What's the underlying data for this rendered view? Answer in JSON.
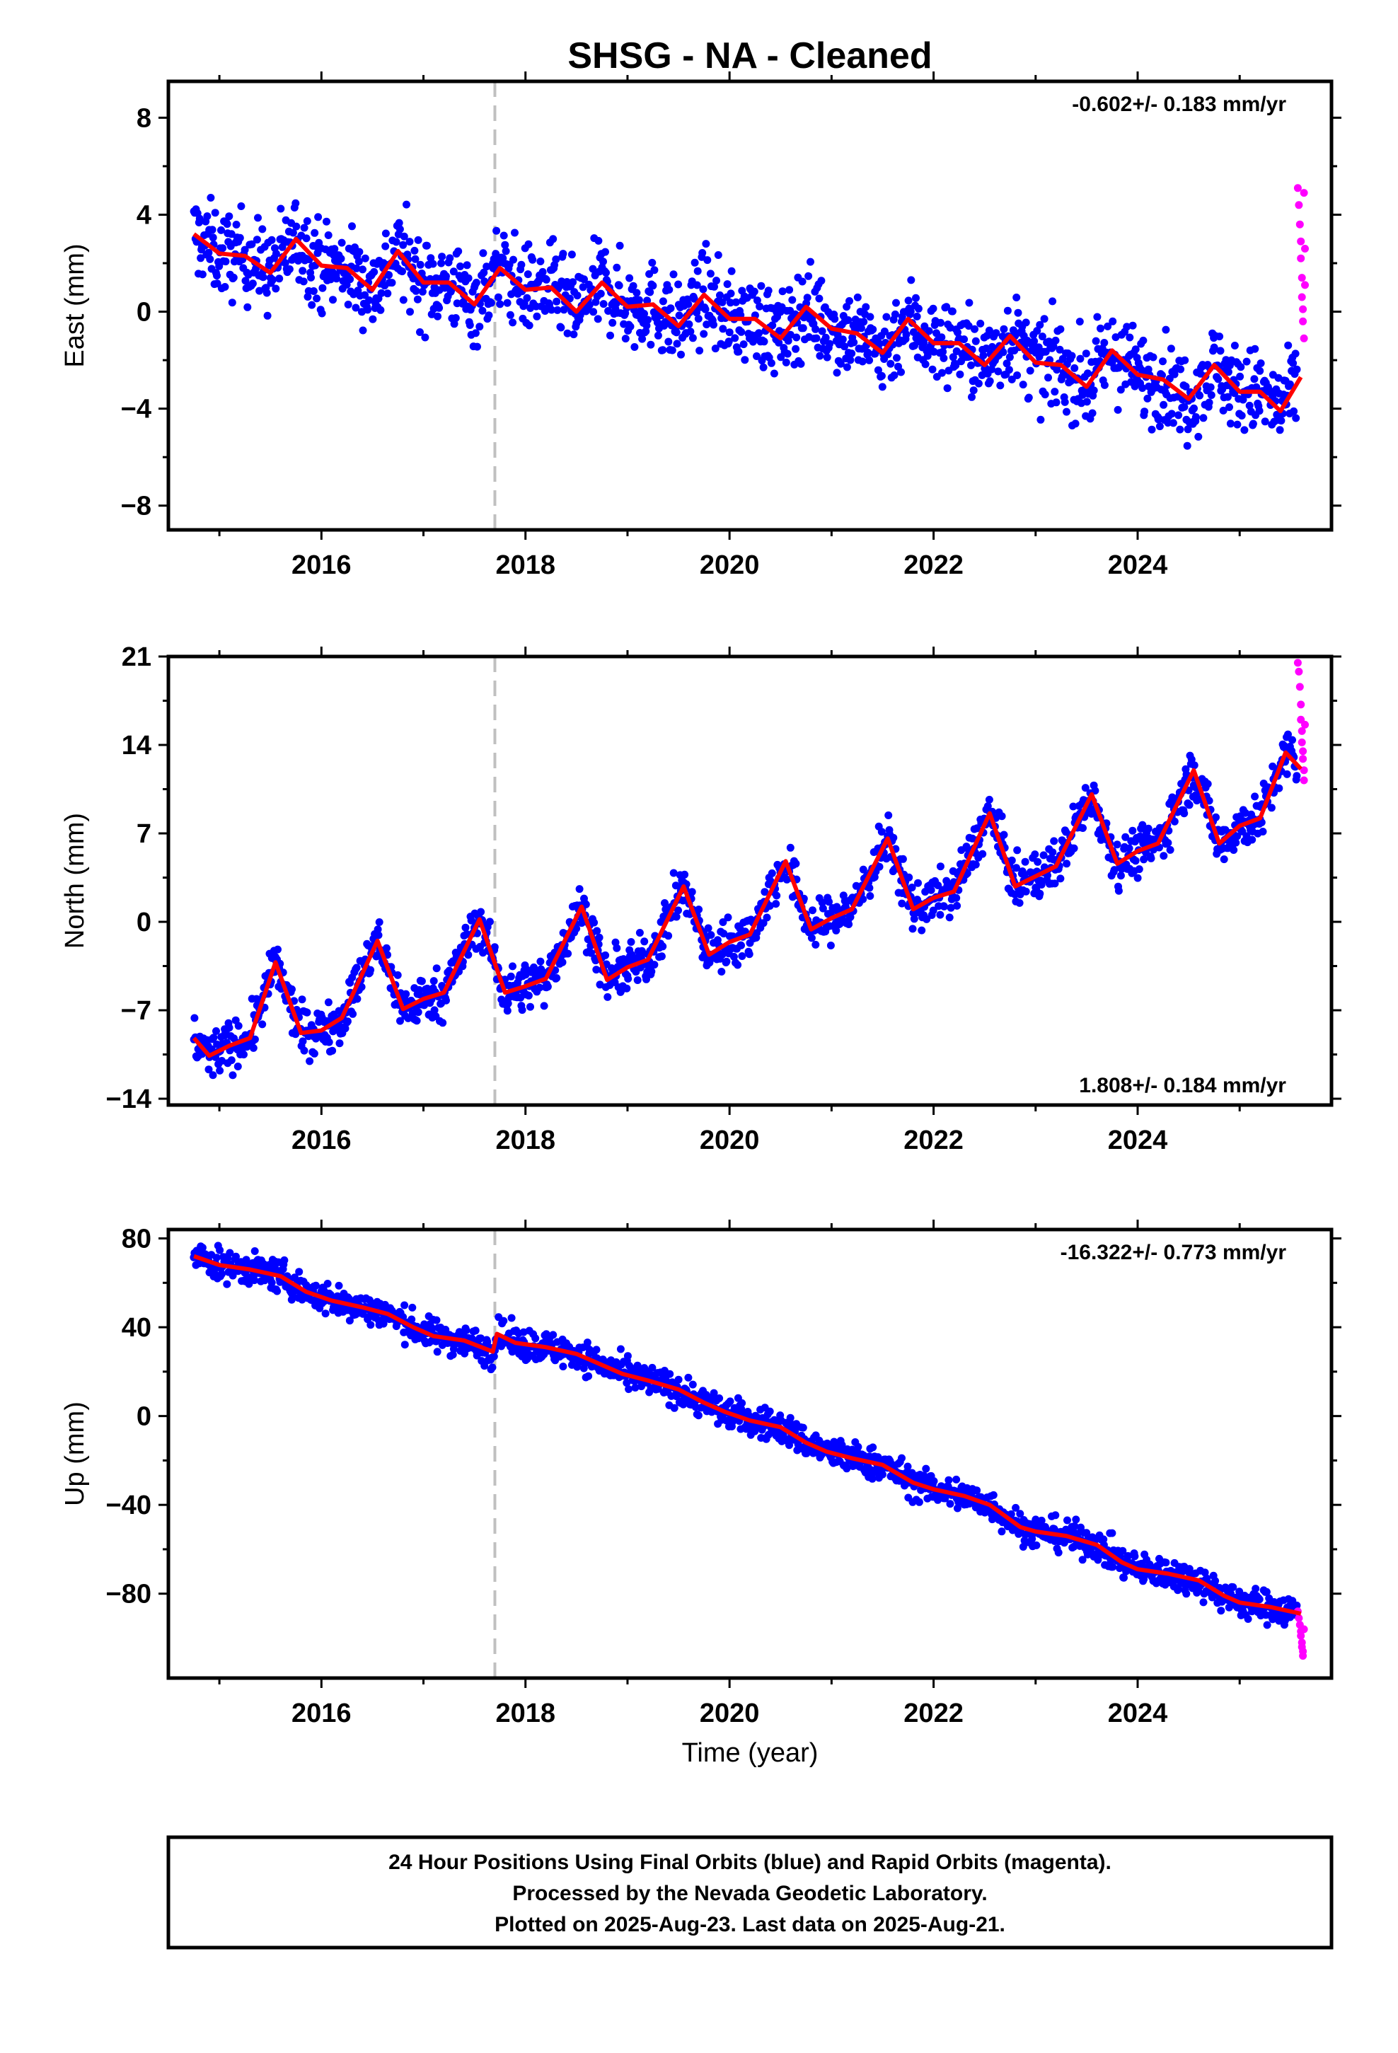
{
  "title": "SHSG  - NA - Cleaned",
  "colors": {
    "final": "#0000ff",
    "rapid": "#ff00ff",
    "model": "#ff0000",
    "event_line": "#c0c0c0"
  },
  "chart_data": [
    {
      "type": "scatter",
      "component": "east",
      "ylabel": "East (mm)",
      "rate_text": "-0.602+/- 0.183 mm/yr",
      "rate_placement": "top-right",
      "xlim": [
        2014.5,
        2025.9
      ],
      "ylim": [
        -9,
        9.5
      ],
      "yticks": [
        -8,
        -4,
        0,
        4,
        8
      ],
      "ytick_labels": [
        "−8",
        "−4",
        "0",
        "4",
        "8"
      ],
      "xticks": [
        2016,
        2018,
        2020,
        2022,
        2024
      ],
      "xtick_labels": [
        "2016",
        "2018",
        "2020",
        "2022",
        "2024"
      ],
      "event_line_x": 2017.7,
      "series": [
        {
          "points": [
            [
              2014.75,
              3.2
            ],
            [
              2015.0,
              2.4
            ],
            [
              2015.25,
              2.3
            ],
            [
              2015.5,
              1.6
            ],
            [
              2015.75,
              3.0
            ],
            [
              2016.0,
              1.9
            ],
            [
              2016.25,
              1.8
            ],
            [
              2016.5,
              0.9
            ],
            [
              2016.75,
              2.5
            ],
            [
              2017.0,
              1.2
            ],
            [
              2017.25,
              1.2
            ],
            [
              2017.5,
              0.3
            ],
            [
              2017.75,
              1.8
            ],
            [
              2018.0,
              0.9
            ],
            [
              2018.25,
              1.0
            ],
            [
              2018.5,
              0.0
            ],
            [
              2018.75,
              1.2
            ],
            [
              2019.0,
              0.2
            ],
            [
              2019.25,
              0.3
            ],
            [
              2019.5,
              -0.6
            ],
            [
              2019.75,
              0.7
            ],
            [
              2020.0,
              -0.3
            ],
            [
              2020.25,
              -0.3
            ],
            [
              2020.5,
              -1.1
            ],
            [
              2020.75,
              0.2
            ],
            [
              2021.0,
              -0.7
            ],
            [
              2021.25,
              -0.9
            ],
            [
              2021.5,
              -1.7
            ],
            [
              2021.75,
              -0.3
            ],
            [
              2022.0,
              -1.3
            ],
            [
              2022.25,
              -1.3
            ],
            [
              2022.5,
              -2.2
            ],
            [
              2022.75,
              -1.0
            ],
            [
              2023.0,
              -2.1
            ],
            [
              2023.25,
              -2.2
            ],
            [
              2023.5,
              -3.1
            ],
            [
              2023.75,
              -1.6
            ],
            [
              2024.0,
              -2.6
            ],
            [
              2024.25,
              -2.8
            ],
            [
              2024.5,
              -3.6
            ],
            [
              2024.75,
              -2.2
            ],
            [
              2025.0,
              -3.3
            ],
            [
              2025.2,
              -3.3
            ],
            [
              2025.4,
              -4.1
            ],
            [
              2025.6,
              -2.7
            ]
          ]
        }
      ],
      "rapid_points": [
        [
          2025.57,
          5.1
        ],
        [
          2025.58,
          4.4
        ],
        [
          2025.59,
          3.6
        ],
        [
          2025.6,
          2.9
        ],
        [
          2025.6,
          2.2
        ],
        [
          2025.61,
          1.4
        ],
        [
          2025.61,
          0.6
        ],
        [
          2025.62,
          0.1
        ],
        [
          2025.62,
          -0.4
        ],
        [
          2025.63,
          -1.1
        ],
        [
          2025.63,
          4.9
        ],
        [
          2025.64,
          2.6
        ],
        [
          2025.64,
          1.1
        ]
      ]
    },
    {
      "type": "scatter",
      "component": "north",
      "ylabel": "North (mm)",
      "rate_text": "1.808+/- 0.184 mm/yr",
      "rate_placement": "bottom-right",
      "xlim": [
        2014.5,
        2025.9
      ],
      "ylim": [
        -14.5,
        21
      ],
      "yticks": [
        -14,
        -7,
        0,
        7,
        14,
        21
      ],
      "ytick_labels": [
        "−14",
        "−7",
        "0",
        "7",
        "14",
        "21"
      ],
      "xticks": [
        2016,
        2018,
        2020,
        2022,
        2024
      ],
      "xtick_labels": [
        "2016",
        "2018",
        "2020",
        "2022",
        "2024"
      ],
      "event_line_x": 2017.7,
      "series": [
        {
          "points": [
            [
              2014.75,
              -9.2
            ],
            [
              2014.9,
              -10.6
            ],
            [
              2015.1,
              -9.8
            ],
            [
              2015.3,
              -9.2
            ],
            [
              2015.55,
              -3.2
            ],
            [
              2015.8,
              -8.8
            ],
            [
              2016.0,
              -8.6
            ],
            [
              2016.2,
              -7.6
            ],
            [
              2016.55,
              -1.5
            ],
            [
              2016.8,
              -6.9
            ],
            [
              2017.0,
              -6.1
            ],
            [
              2017.2,
              -5.6
            ],
            [
              2017.55,
              0.2
            ],
            [
              2017.8,
              -5.6
            ],
            [
              2018.0,
              -5.1
            ],
            [
              2018.2,
              -4.5
            ],
            [
              2018.55,
              1.2
            ],
            [
              2018.8,
              -4.6
            ],
            [
              2019.0,
              -3.6
            ],
            [
              2019.2,
              -3.0
            ],
            [
              2019.55,
              2.8
            ],
            [
              2019.8,
              -2.6
            ],
            [
              2020.0,
              -1.6
            ],
            [
              2020.2,
              -1.0
            ],
            [
              2020.55,
              4.8
            ],
            [
              2020.8,
              -0.6
            ],
            [
              2021.0,
              0.3
            ],
            [
              2021.2,
              1.0
            ],
            [
              2021.55,
              6.6
            ],
            [
              2021.8,
              1.0
            ],
            [
              2022.0,
              1.9
            ],
            [
              2022.2,
              2.4
            ],
            [
              2022.55,
              8.6
            ],
            [
              2022.8,
              2.8
            ],
            [
              2023.0,
              3.6
            ],
            [
              2023.2,
              4.4
            ],
            [
              2023.55,
              10.1
            ],
            [
              2023.8,
              4.6
            ],
            [
              2024.0,
              5.6
            ],
            [
              2024.2,
              6.2
            ],
            [
              2024.55,
              12.0
            ],
            [
              2024.8,
              6.2
            ],
            [
              2025.0,
              7.6
            ],
            [
              2025.2,
              8.2
            ],
            [
              2025.45,
              13.4
            ],
            [
              2025.6,
              12.1
            ]
          ]
        }
      ],
      "rapid_points": [
        [
          2025.57,
          20.5
        ],
        [
          2025.58,
          19.8
        ],
        [
          2025.59,
          18.6
        ],
        [
          2025.6,
          17.2
        ],
        [
          2025.6,
          16.0
        ],
        [
          2025.61,
          15.1
        ],
        [
          2025.61,
          14.2
        ],
        [
          2025.62,
          13.5
        ],
        [
          2025.62,
          12.9
        ],
        [
          2025.63,
          12.0
        ],
        [
          2025.63,
          11.2
        ],
        [
          2025.64,
          15.6
        ]
      ]
    },
    {
      "type": "scatter",
      "component": "up",
      "ylabel": "Up (mm)",
      "rate_text": "-16.322+/- 0.773 mm/yr",
      "rate_placement": "top-right",
      "xlim": [
        2014.5,
        2025.9
      ],
      "ylim": [
        -118,
        84
      ],
      "yticks": [
        -80,
        -40,
        0,
        40,
        80
      ],
      "ytick_labels": [
        "−80",
        "−40",
        "0",
        "40",
        "80"
      ],
      "xticks": [
        2016,
        2018,
        2020,
        2022,
        2024
      ],
      "xtick_labels": [
        "2016",
        "2018",
        "2020",
        "2022",
        "2024"
      ],
      "xlabel": "Time (year)",
      "event_line_x": 2017.7,
      "series": [
        {
          "points": [
            [
              2014.75,
              72
            ],
            [
              2015.0,
              68
            ],
            [
              2015.3,
              66
            ],
            [
              2015.6,
              63
            ],
            [
              2015.85,
              56
            ],
            [
              2016.1,
              52
            ],
            [
              2016.4,
              49
            ],
            [
              2016.65,
              46
            ],
            [
              2016.9,
              40
            ],
            [
              2017.1,
              36
            ],
            [
              2017.4,
              34
            ],
            [
              2017.68,
              29
            ],
            [
              2017.72,
              37
            ],
            [
              2017.9,
              33
            ],
            [
              2018.2,
              31
            ],
            [
              2018.5,
              28
            ],
            [
              2018.75,
              23
            ],
            [
              2018.95,
              19
            ],
            [
              2019.2,
              16
            ],
            [
              2019.5,
              12
            ],
            [
              2019.75,
              6
            ],
            [
              2019.95,
              2
            ],
            [
              2020.2,
              -2
            ],
            [
              2020.5,
              -5
            ],
            [
              2020.75,
              -12
            ],
            [
              2020.95,
              -16
            ],
            [
              2021.2,
              -19
            ],
            [
              2021.5,
              -22
            ],
            [
              2021.8,
              -30
            ],
            [
              2022.0,
              -33
            ],
            [
              2022.3,
              -36
            ],
            [
              2022.55,
              -40
            ],
            [
              2022.85,
              -50
            ],
            [
              2023.0,
              -52
            ],
            [
              2023.3,
              -54
            ],
            [
              2023.6,
              -58
            ],
            [
              2023.85,
              -66
            ],
            [
              2024.0,
              -69
            ],
            [
              2024.3,
              -71
            ],
            [
              2024.6,
              -74
            ],
            [
              2024.85,
              -81
            ],
            [
              2025.0,
              -84
            ],
            [
              2025.3,
              -86
            ],
            [
              2025.6,
              -89
            ]
          ]
        }
      ],
      "rapid_points": [
        [
          2025.57,
          -88
        ],
        [
          2025.58,
          -91
        ],
        [
          2025.59,
          -94
        ],
        [
          2025.6,
          -97
        ],
        [
          2025.6,
          -99
        ],
        [
          2025.61,
          -102
        ],
        [
          2025.61,
          -104
        ],
        [
          2025.62,
          -106
        ],
        [
          2025.62,
          -108
        ],
        [
          2025.63,
          -96
        ]
      ]
    }
  ],
  "footer": {
    "line1": "24 Hour Positions Using Final Orbits (blue) and Rapid Orbits (magenta).",
    "line2": "Processed by the Nevada Geodetic Laboratory.",
    "line3": "Plotted on 2025-Aug-23. Last data on 2025-Aug-21."
  }
}
